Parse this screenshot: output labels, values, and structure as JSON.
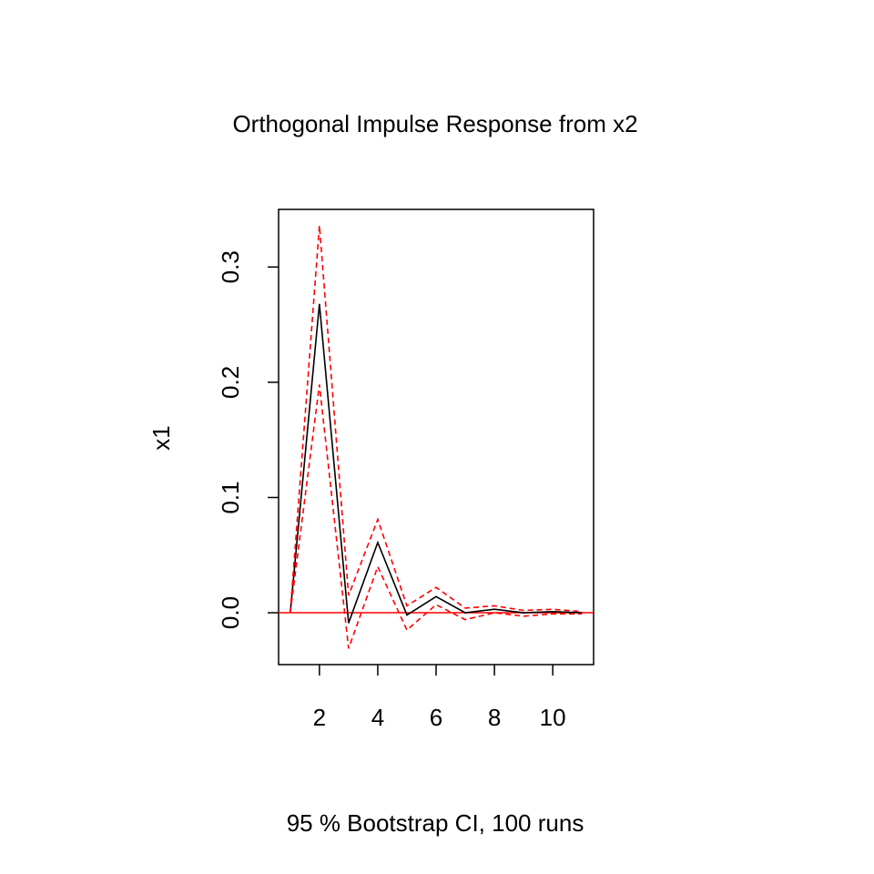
{
  "chart_data": {
    "type": "line",
    "title": "Orthogonal Impulse Response from x2",
    "xlabel": "95 % Bootstrap CI,  100 runs",
    "ylabel": "x1",
    "xlim": [
      0.6,
      11.4
    ],
    "ylim": [
      -0.045,
      0.35
    ],
    "x_ticks": [
      2,
      4,
      6,
      8,
      10
    ],
    "x_tick_labels": [
      "2",
      "4",
      "6",
      "8",
      "10"
    ],
    "y_ticks": [
      0.0,
      0.1,
      0.2,
      0.3
    ],
    "y_tick_labels": [
      "0.0",
      "0.1",
      "0.2",
      "0.3"
    ],
    "grid": false,
    "x": [
      1,
      2,
      3,
      4,
      5,
      6,
      7,
      8,
      9,
      10,
      11
    ],
    "series": [
      {
        "values": [
          0.0,
          0.268,
          -0.009,
          0.061,
          -0.002,
          0.014,
          0.0,
          0.003,
          0.0,
          0.001,
          0.0
        ],
        "color": "#000000",
        "style": "solid"
      },
      {
        "values": [
          0.0,
          0.336,
          0.015,
          0.081,
          0.006,
          0.022,
          0.004,
          0.006,
          0.002,
          0.003,
          0.001
        ],
        "color": "#ff0000",
        "style": "dashed"
      },
      {
        "values": [
          0.0,
          0.198,
          -0.031,
          0.04,
          -0.015,
          0.007,
          -0.006,
          0.0,
          -0.003,
          -0.001,
          -0.001
        ],
        "color": "#ff0000",
        "style": "dashed"
      }
    ],
    "reference_line": {
      "y": 0.0,
      "color": "#ff0000"
    }
  }
}
